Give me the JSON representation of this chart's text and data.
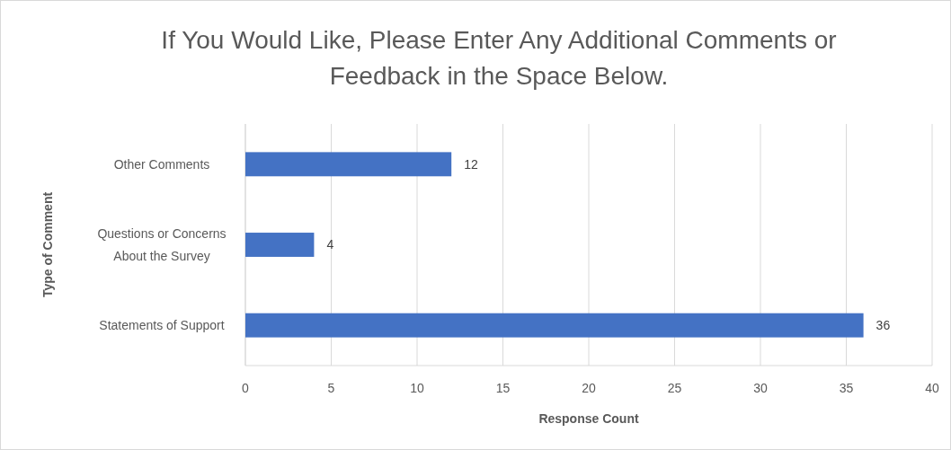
{
  "chart_data": {
    "type": "bar",
    "orientation": "horizontal",
    "title": "If You Would Like, Please Enter Any Additional Comments or Feedback in the Space Below.",
    "xlabel": "Response Count",
    "ylabel": "Type of Comment",
    "categories": [
      "Other Comments",
      "Questions or Concerns About the Survey",
      "Statements of Support"
    ],
    "values": [
      12,
      4,
      36
    ],
    "color": "#4472c4",
    "xlim": [
      0,
      40
    ],
    "xticks": [
      0,
      5,
      10,
      15,
      20,
      25,
      30,
      35,
      40
    ],
    "grid": "x",
    "data_labels": true
  }
}
